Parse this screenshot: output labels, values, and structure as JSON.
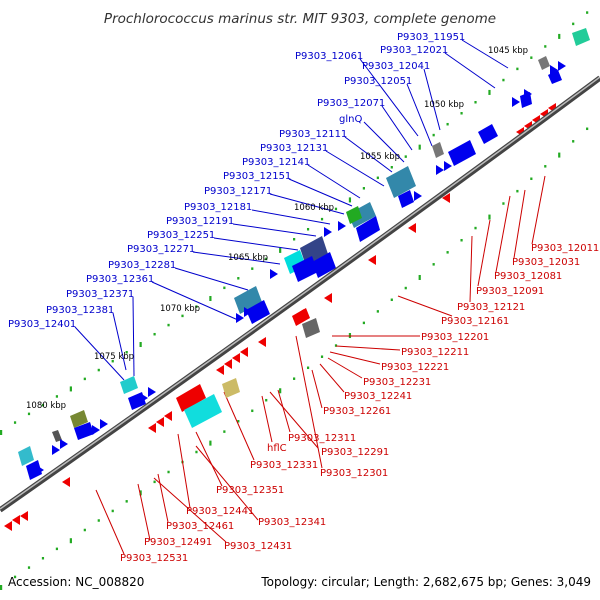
{
  "title": "Prochlorococcus marinus str. MIT 9303, complete genome",
  "footer": {
    "accession": "Accession: NC_008820",
    "summary": "Topology: circular; Length: 2,682,675 bp; Genes: 3,049"
  },
  "colors": {
    "forward_label": "#0000cc",
    "reverse_label": "#cc0000",
    "forward_gene": "#0000ee",
    "reverse_gene": "#ee0000",
    "backbone": "#777777",
    "tick": "#22aa22"
  },
  "kbp_markers": [
    "1045 kbp",
    "1050 kbp",
    "1055 kbp",
    "1060 kbp",
    "1065 kbp",
    "1070 kbp",
    "1075 kbp",
    "1080 kbp"
  ],
  "forward_genes": [
    "P9303_11951",
    "P9303_12021",
    "P9303_12061",
    "P9303_12041",
    "P9303_12051",
    "P9303_12071",
    "glnQ",
    "P9303_12111",
    "P9303_12131",
    "P9303_12141",
    "P9303_12151",
    "P9303_12171",
    "P9303_12181",
    "P9303_12191",
    "P9303_12251",
    "P9303_12271",
    "P9303_12281",
    "P9303_12361",
    "P9303_12371",
    "P9303_12381",
    "P9303_12401"
  ],
  "reverse_genes": [
    "P9303_12011",
    "P9303_12031",
    "P9303_12081",
    "P9303_12091",
    "P9303_12121",
    "P9303_12161",
    "P9303_12201",
    "P9303_12211",
    "P9303_12221",
    "P9303_12231",
    "P9303_12241",
    "P9303_12261",
    "P9303_12311",
    "P9303_12291",
    "hflC",
    "P9303_12301",
    "P9303_12331",
    "P9303_12351",
    "P9303_12341",
    "P9303_12441",
    "P9303_12461",
    "P9303_12431",
    "P9303_12491",
    "P9303_12531"
  ]
}
